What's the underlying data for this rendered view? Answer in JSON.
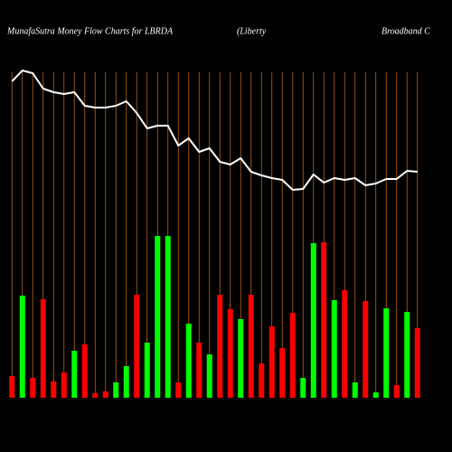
{
  "chart_data": {
    "type": "bar",
    "title": [
      "MunafaSutra  Money Flow  Charts for LBRDA",
      "(Liberty",
      "Broadband C"
    ],
    "categories": [
      null,
      null,
      null,
      null,
      null,
      null,
      null,
      null,
      null,
      null,
      null,
      null,
      null,
      null,
      null,
      null,
      null,
      null,
      null,
      null,
      null,
      null,
      null,
      null,
      null,
      null,
      null,
      null,
      null,
      null,
      null,
      null,
      null,
      null,
      null,
      null,
      null,
      null,
      null,
      null
    ],
    "values": [
      24,
      113,
      22,
      109,
      18,
      28,
      52,
      59,
      5,
      7,
      17,
      35,
      114,
      61,
      179,
      179,
      17,
      82,
      61,
      48,
      114,
      98,
      87,
      114,
      38,
      79,
      55,
      94,
      22,
      171,
      172,
      108,
      119,
      17,
      107,
      6,
      99,
      14,
      95,
      77
    ],
    "bar_colors": [
      "#ff0000",
      "#00ff00",
      "#ff0000",
      "#ff0000",
      "#ff0000",
      "#ff0000",
      "#00ff00",
      "#ff0000",
      "#ff0000",
      "#ff0000",
      "#00ff00",
      "#00ff00",
      "#ff0000",
      "#00ff00",
      "#00ff00",
      "#00ff00",
      "#ff0000",
      "#00ff00",
      "#ff0000",
      "#00ff00",
      "#ff0000",
      "#ff0000",
      "#00ff00",
      "#ff0000",
      "#ff0000",
      "#ff0000",
      "#ff0000",
      "#ff0000",
      "#00ff00",
      "#00ff00",
      "#ff0000",
      "#00ff00",
      "#ff0000",
      "#00ff00",
      "#ff0000",
      "#00ff00",
      "#00ff00",
      "#ff0000",
      "#00ff00",
      "#ff0000"
    ],
    "line_values": [
      350,
      362,
      359,
      342,
      338,
      336,
      338,
      323,
      321,
      321,
      323,
      328,
      315,
      298,
      301,
      301,
      279,
      287,
      272,
      276,
      261,
      258,
      265,
      250,
      246,
      243,
      241,
      230,
      231,
      247,
      238,
      243,
      241,
      243,
      235,
      237,
      242,
      242,
      251,
      250
    ],
    "line_color": "#ffffff",
    "grid_color": "#b8651b",
    "ylim": [
      0,
      360
    ]
  }
}
